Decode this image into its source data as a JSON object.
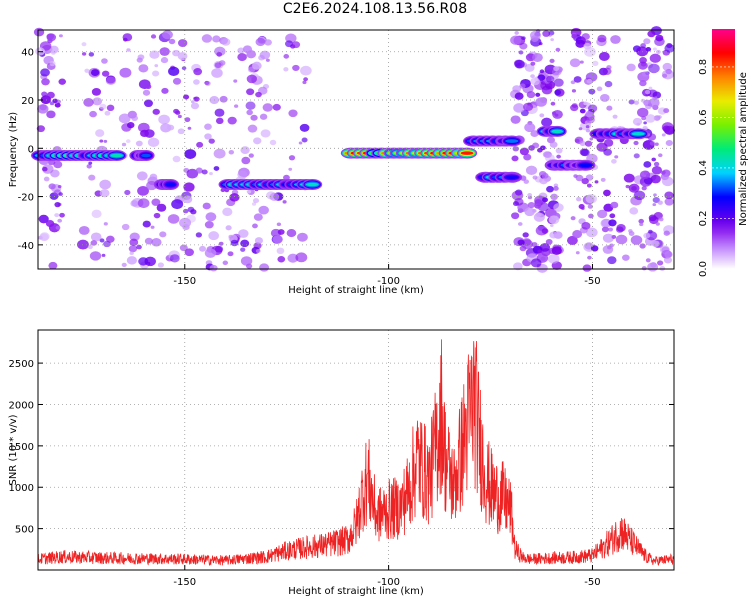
{
  "title": "C2E6.2024.108.13.56.R08",
  "chart_data": [
    {
      "type": "heatmap",
      "xlabel": "Height of straight line (km)",
      "ylabel": "Frequency (Hz)",
      "xlim": [
        -186,
        -30
      ],
      "ylim": [
        -50,
        49
      ],
      "x_ticks": [
        -150,
        -100,
        -50
      ],
      "y_ticks": [
        -40,
        -20,
        0,
        20,
        40
      ],
      "grid": true,
      "colorbar": {
        "label": "Normalized spectral amplitude",
        "range": [
          0,
          0.95
        ],
        "ticks": [
          0.0,
          0.2,
          0.4,
          0.6,
          0.8
        ],
        "tick_labels": [
          "0.0",
          "0.2",
          "0.4",
          "0.6",
          "0.8"
        ]
      },
      "features": [
        {
          "x_start": -186,
          "x_end": -166,
          "freq_hz": -3,
          "peak_amplitude": 0.55
        },
        {
          "x_start": -162,
          "x_end": -159,
          "freq_hz": -3,
          "peak_amplitude": 0.4
        },
        {
          "x_start": -156,
          "x_end": -153,
          "freq_hz": -15,
          "peak_amplitude": 0.35
        },
        {
          "x_start": -140,
          "x_end": -118,
          "freq_hz": -15,
          "peak_amplitude": 0.5
        },
        {
          "x_start": -110,
          "x_end": -80,
          "freq_hz": -2,
          "peak_amplitude": 0.95
        },
        {
          "x_start": -80,
          "x_end": -69,
          "freq_hz": 3,
          "peak_amplitude": 0.45
        },
        {
          "x_start": -77,
          "x_end": -69,
          "freq_hz": -12,
          "peak_amplitude": 0.5
        },
        {
          "x_start": -62,
          "x_end": -58,
          "freq_hz": 7,
          "peak_amplitude": 0.5
        },
        {
          "x_start": -60,
          "x_end": -51,
          "freq_hz": -7,
          "peak_amplitude": 0.35
        },
        {
          "x_start": -49,
          "x_end": -38,
          "freq_hz": 6,
          "peak_amplitude": 0.5
        }
      ]
    },
    {
      "type": "line",
      "xlabel": "Height of straight line (km)",
      "ylabel": "SNR (10 * v/v)",
      "xlim": [
        -186,
        -30
      ],
      "ylim": [
        0,
        2900
      ],
      "x_ticks": [
        -150,
        -100,
        -50
      ],
      "y_ticks": [
        500,
        1000,
        1500,
        2000,
        2500
      ],
      "grid": true,
      "color": "#ee2222",
      "series": [
        {
          "x": [
            -186,
            -180,
            -170,
            -160,
            -150,
            -140,
            -130,
            -125,
            -120,
            -115,
            -110,
            -108,
            -106,
            -105,
            -103,
            -100,
            -97,
            -95,
            -93,
            -90,
            -88,
            -87,
            -86,
            -84,
            -82,
            -80,
            -79,
            -78,
            -76,
            -74,
            -72,
            -70,
            -69,
            -67,
            -65,
            -60,
            -55,
            -50,
            -47,
            -45,
            -43,
            -40,
            -37,
            -35,
            -30
          ],
          "y": [
            180,
            220,
            200,
            190,
            180,
            160,
            220,
            320,
            380,
            420,
            500,
            750,
            1400,
            1520,
            900,
            1000,
            1050,
            1350,
            1850,
            1500,
            2200,
            2640,
            1800,
            1400,
            2000,
            2600,
            2860,
            2300,
            1500,
            1250,
            1200,
            1000,
            350,
            200,
            180,
            200,
            210,
            240,
            400,
            520,
            660,
            440,
            230,
            150,
            180
          ]
        }
      ]
    }
  ]
}
